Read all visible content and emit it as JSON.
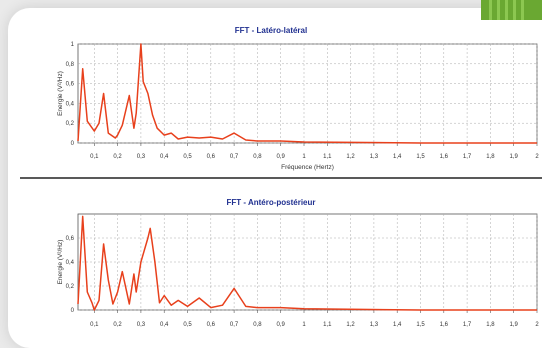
{
  "chart_data": [
    {
      "type": "line",
      "title": "FFT - Latéro-latéral",
      "xlabel": "Fréquence (Hertz)",
      "ylabel": "Energie (V²/Hz)",
      "xlim": [
        0.03,
        2.0
      ],
      "ylim": [
        0,
        1
      ],
      "x_ticks": [
        "0,1",
        "0,2",
        "0,3",
        "0,4",
        "0,5",
        "0,6",
        "0,7",
        "0,8",
        "0,9",
        "1",
        "1,1",
        "1,2",
        "1,3",
        "1,4",
        "1,5",
        "1,6",
        "1,7",
        "1,8",
        "1,9",
        "2"
      ],
      "y_ticks": [
        "0",
        "0,2",
        "0,4",
        "0,6",
        "0,8",
        "1"
      ],
      "grid": true,
      "series_color": "#e8401c",
      "x": [
        0.03,
        0.05,
        0.07,
        0.1,
        0.12,
        0.14,
        0.16,
        0.19,
        0.2,
        0.22,
        0.25,
        0.27,
        0.28,
        0.3,
        0.31,
        0.33,
        0.35,
        0.37,
        0.4,
        0.43,
        0.46,
        0.5,
        0.55,
        0.6,
        0.65,
        0.7,
        0.75,
        0.8,
        0.9,
        1.0,
        1.5,
        2.0
      ],
      "y": [
        0.02,
        0.75,
        0.22,
        0.12,
        0.2,
        0.5,
        0.1,
        0.05,
        0.08,
        0.18,
        0.48,
        0.15,
        0.3,
        1.0,
        0.62,
        0.5,
        0.28,
        0.15,
        0.08,
        0.1,
        0.04,
        0.06,
        0.05,
        0.06,
        0.04,
        0.1,
        0.03,
        0.02,
        0.02,
        0.01,
        0.0,
        0.0
      ]
    },
    {
      "type": "line",
      "title": "FFT - Antéro-postérieur",
      "xlabel": "",
      "ylabel": "Energie (V²/Hz)",
      "xlim": [
        0.03,
        2.0
      ],
      "ylim": [
        0,
        0.8
      ],
      "x_ticks": [
        "0,1",
        "0,2",
        "0,3",
        "0,4",
        "0,5",
        "0,6",
        "0,7",
        "0,8",
        "0,9",
        "1",
        "1,1",
        "1,2",
        "1,3",
        "1,4",
        "1,5",
        "1,6",
        "1,7",
        "1,8",
        "1,9",
        "2"
      ],
      "y_ticks": [
        "0",
        "0,2",
        "0,4",
        "0,6"
      ],
      "grid": true,
      "series_color": "#e8401c",
      "x": [
        0.03,
        0.05,
        0.07,
        0.09,
        0.1,
        0.12,
        0.14,
        0.16,
        0.18,
        0.2,
        0.22,
        0.25,
        0.27,
        0.28,
        0.3,
        0.33,
        0.34,
        0.36,
        0.38,
        0.4,
        0.43,
        0.46,
        0.5,
        0.55,
        0.6,
        0.65,
        0.7,
        0.75,
        0.8,
        0.9,
        1.0,
        1.5,
        2.0
      ],
      "y": [
        0.05,
        0.78,
        0.15,
        0.06,
        0.0,
        0.08,
        0.55,
        0.25,
        0.05,
        0.15,
        0.32,
        0.05,
        0.3,
        0.15,
        0.4,
        0.6,
        0.68,
        0.4,
        0.06,
        0.12,
        0.04,
        0.08,
        0.03,
        0.1,
        0.02,
        0.04,
        0.18,
        0.03,
        0.02,
        0.02,
        0.01,
        0.0,
        0.0
      ]
    }
  ]
}
